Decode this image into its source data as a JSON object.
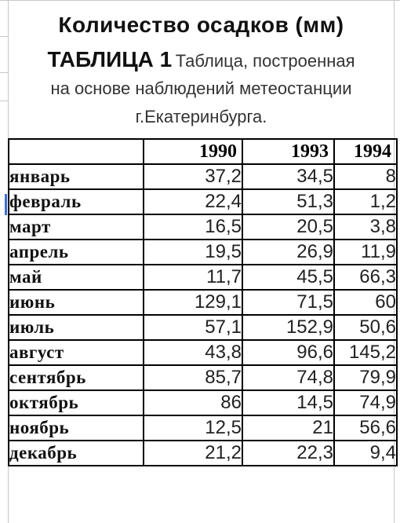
{
  "title": {
    "line1": "Количество осадков (мм)",
    "table_label": "ТАБЛИЦА 1",
    "line2_rest": "Таблица, построенная",
    "line3": "на основе наблюдений метеостанции",
    "line4": "г.Екатеринбурга."
  },
  "table": {
    "corner": "",
    "years": [
      "1990",
      "1993",
      "1994"
    ],
    "rows": [
      {
        "month": "январь",
        "values": [
          "37,2",
          "34,5",
          "8"
        ]
      },
      {
        "month": "февраль",
        "values": [
          "22,4",
          "51,3",
          "1,2"
        ]
      },
      {
        "month": "март",
        "values": [
          "16,5",
          "20,5",
          "3,8"
        ]
      },
      {
        "month": "апрель",
        "values": [
          "19,5",
          "26,9",
          "11,9"
        ]
      },
      {
        "month": "май",
        "values": [
          "11,7",
          "45,5",
          "66,3"
        ]
      },
      {
        "month": "июнь",
        "values": [
          "129,1",
          "71,5",
          "60"
        ]
      },
      {
        "month": "июль",
        "values": [
          "57,1",
          "152,9",
          "50,6"
        ]
      },
      {
        "month": "август",
        "values": [
          "43,8",
          "96,6",
          "145,2"
        ]
      },
      {
        "month": "сентябрь",
        "values": [
          "85,7",
          "74,8",
          "79,9"
        ]
      },
      {
        "month": "октябрь",
        "values": [
          "86",
          "14,5",
          "74,9"
        ]
      },
      {
        "month": "ноябрь",
        "values": [
          "12,5",
          "21",
          "56,6"
        ]
      },
      {
        "month": "декабрь",
        "values": [
          "21,2",
          "22,3",
          "9,4"
        ]
      }
    ]
  },
  "colors": {
    "gridline": "#c8c8c8",
    "border": "#000000",
    "selection": "#3b6fd6"
  }
}
